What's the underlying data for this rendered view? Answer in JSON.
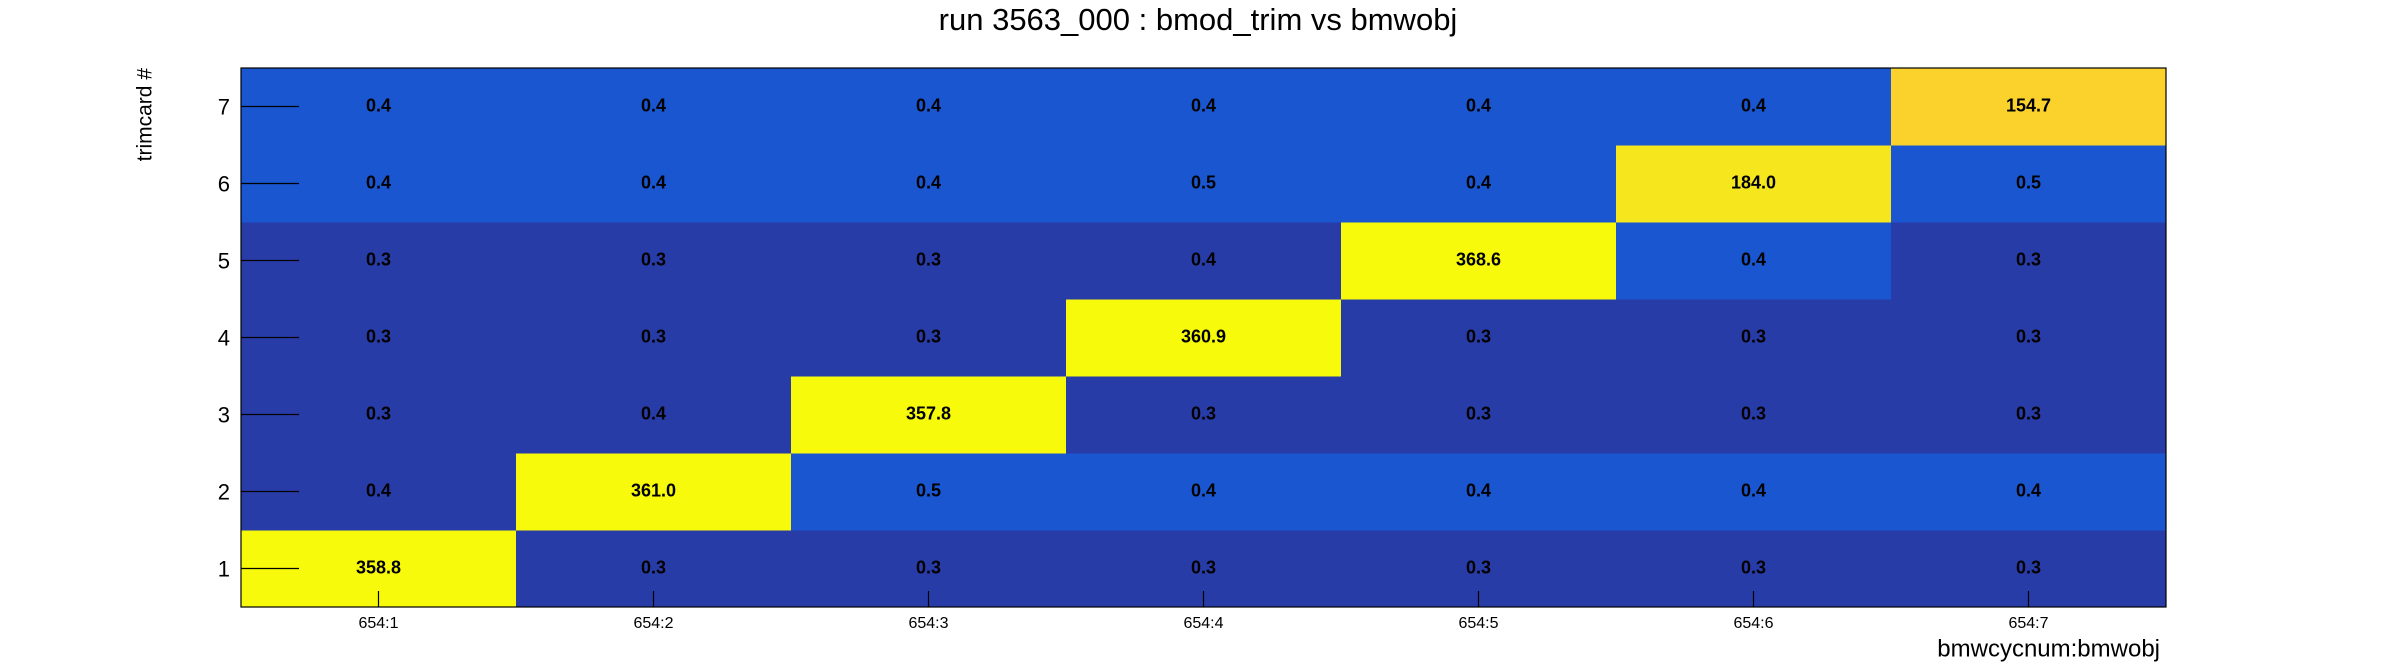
{
  "chart_data": {
    "type": "heatmap",
    "title": "run 3563_000 : bmod_trim vs bmwobj",
    "x_label": "bmwcycnum:bmwobj",
    "y_label": "trimcard #",
    "x_categories": [
      "654:1",
      "654:2",
      "654:3",
      "654:4",
      "654:5",
      "654:6",
      "654:7"
    ],
    "y_categories": [
      "1",
      "2",
      "3",
      "4",
      "5",
      "6",
      "7"
    ],
    "z": [
      [
        358.8,
        0.3,
        0.3,
        0.3,
        0.3,
        0.3,
        0.3
      ],
      [
        0.4,
        361.0,
        0.5,
        0.4,
        0.4,
        0.4,
        0.4
      ],
      [
        0.3,
        0.4,
        357.8,
        0.3,
        0.3,
        0.3,
        0.3
      ],
      [
        0.3,
        0.3,
        0.3,
        360.9,
        0.3,
        0.3,
        0.3
      ],
      [
        0.3,
        0.3,
        0.3,
        0.4,
        368.6,
        0.4,
        0.3
      ],
      [
        0.4,
        0.4,
        0.4,
        0.5,
        0.4,
        184.0,
        0.5
      ],
      [
        0.4,
        0.4,
        0.4,
        0.4,
        0.4,
        0.4,
        154.7
      ]
    ],
    "value_labels": [
      [
        "358.8",
        "0.3",
        "0.3",
        "0.3",
        "0.3",
        "0.3",
        "0.3"
      ],
      [
        "0.4",
        "361.0",
        "0.5",
        "0.4",
        "0.4",
        "0.4",
        "0.4"
      ],
      [
        "0.3",
        "0.4",
        "357.8",
        "0.3",
        "0.3",
        "0.3",
        "0.3"
      ],
      [
        "0.3",
        "0.3",
        "0.3",
        "360.9",
        "0.3",
        "0.3",
        "0.3"
      ],
      [
        "0.3",
        "0.3",
        "0.3",
        "0.4",
        "368.6",
        "0.4",
        "0.3"
      ],
      [
        "0.4",
        "0.4",
        "0.4",
        "0.5",
        "0.4",
        "184.0",
        "0.5"
      ],
      [
        "0.4",
        "0.4",
        "0.4",
        "0.4",
        "0.4",
        "0.4",
        "154.7"
      ]
    ],
    "colors": [
      [
        "#f8fa0c",
        "#283ca8",
        "#283ca8",
        "#283ca8",
        "#283ca8",
        "#283ca8",
        "#283ca8"
      ],
      [
        "#283ca8",
        "#f8fa0c",
        "#1a56d0",
        "#1a56d0",
        "#1a56d0",
        "#1a56d0",
        "#1a56d0"
      ],
      [
        "#283ca8",
        "#283ca8",
        "#f8fa0c",
        "#283ca8",
        "#283ca8",
        "#283ca8",
        "#283ca8"
      ],
      [
        "#283ca8",
        "#283ca8",
        "#283ca8",
        "#f8fa0c",
        "#283ca8",
        "#283ca8",
        "#283ca8"
      ],
      [
        "#283ca8",
        "#283ca8",
        "#283ca8",
        "#283ca8",
        "#f8fa0c",
        "#1a56d0",
        "#283ca8"
      ],
      [
        "#1a56d0",
        "#1a56d0",
        "#1a56d0",
        "#1a56d0",
        "#1a56d0",
        "#f5e61e",
        "#1a56d0"
      ],
      [
        "#1a56d0",
        "#1a56d0",
        "#1a56d0",
        "#1a56d0",
        "#1a56d0",
        "#1a56d0",
        "#fbd12c"
      ]
    ]
  }
}
